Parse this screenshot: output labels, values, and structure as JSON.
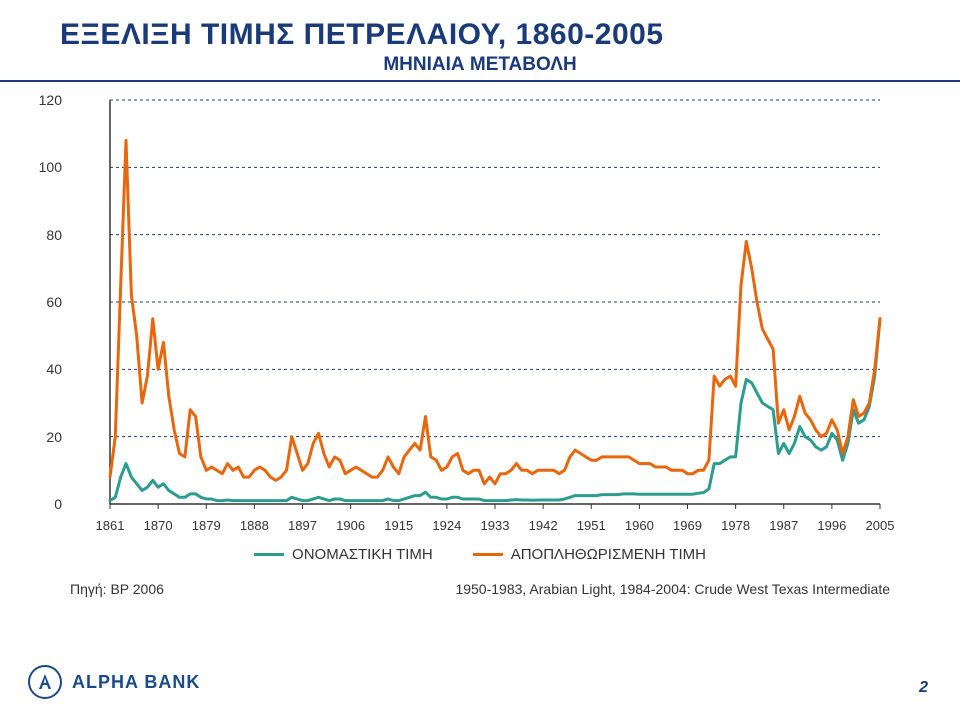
{
  "title": "ΕΞΕΛΙΞΗ ΤΙΜΗΣ ΠΕΤΡΕΛΑΙΟΥ, 1860-2005",
  "subtitle": "ΜΗΝΙΑΙΑ ΜΕΤΑΒΟΛΗ",
  "chart": {
    "type": "line",
    "ylim": [
      0,
      120
    ],
    "ytick_step": 20,
    "yticks": [
      0,
      20,
      40,
      60,
      80,
      100,
      120
    ],
    "xlim": [
      1861,
      2005
    ],
    "xticks": [
      1861,
      1870,
      1879,
      1888,
      1897,
      1906,
      1915,
      1924,
      1933,
      1942,
      1951,
      1960,
      1969,
      1978,
      1987,
      1996,
      2005
    ],
    "grid_color": "#1a3a7a",
    "grid_dash": "3,3",
    "axis_color": "#333333",
    "background_color": "#ffffff",
    "line_width": 3,
    "tick_fontsize": 14,
    "series": [
      {
        "name": "ΟΝΟΜΑΣΤΙΚΗ ΤΙΜΗ",
        "color": "#2a9d8f",
        "data": [
          [
            1861,
            1
          ],
          [
            1862,
            2
          ],
          [
            1863,
            8
          ],
          [
            1864,
            12
          ],
          [
            1865,
            8
          ],
          [
            1866,
            6
          ],
          [
            1867,
            4
          ],
          [
            1868,
            5
          ],
          [
            1869,
            7
          ],
          [
            1870,
            5
          ],
          [
            1871,
            6
          ],
          [
            1872,
            4
          ],
          [
            1873,
            3
          ],
          [
            1874,
            2
          ],
          [
            1875,
            2
          ],
          [
            1876,
            3
          ],
          [
            1877,
            3
          ],
          [
            1878,
            2
          ],
          [
            1879,
            1.5
          ],
          [
            1880,
            1.5
          ],
          [
            1881,
            1
          ],
          [
            1882,
            1
          ],
          [
            1883,
            1.2
          ],
          [
            1884,
            1
          ],
          [
            1885,
            1
          ],
          [
            1886,
            1
          ],
          [
            1887,
            1
          ],
          [
            1888,
            1
          ],
          [
            1889,
            1
          ],
          [
            1890,
            1
          ],
          [
            1891,
            1
          ],
          [
            1892,
            1
          ],
          [
            1893,
            1
          ],
          [
            1894,
            1
          ],
          [
            1895,
            2
          ],
          [
            1896,
            1.5
          ],
          [
            1897,
            1
          ],
          [
            1898,
            1
          ],
          [
            1899,
            1.5
          ],
          [
            1900,
            2
          ],
          [
            1901,
            1.5
          ],
          [
            1902,
            1
          ],
          [
            1903,
            1.5
          ],
          [
            1904,
            1.5
          ],
          [
            1905,
            1
          ],
          [
            1906,
            1
          ],
          [
            1907,
            1
          ],
          [
            1908,
            1
          ],
          [
            1909,
            1
          ],
          [
            1910,
            1
          ],
          [
            1911,
            1
          ],
          [
            1912,
            1
          ],
          [
            1913,
            1.5
          ],
          [
            1914,
            1
          ],
          [
            1915,
            1
          ],
          [
            1916,
            1.5
          ],
          [
            1917,
            2
          ],
          [
            1918,
            2.5
          ],
          [
            1919,
            2.5
          ],
          [
            1920,
            3.5
          ],
          [
            1921,
            2
          ],
          [
            1922,
            2
          ],
          [
            1923,
            1.5
          ],
          [
            1924,
            1.5
          ],
          [
            1925,
            2
          ],
          [
            1926,
            2
          ],
          [
            1927,
            1.5
          ],
          [
            1928,
            1.5
          ],
          [
            1929,
            1.5
          ],
          [
            1930,
            1.5
          ],
          [
            1931,
            1
          ],
          [
            1932,
            1
          ],
          [
            1933,
            1
          ],
          [
            1934,
            1
          ],
          [
            1935,
            1
          ],
          [
            1936,
            1.2
          ],
          [
            1937,
            1.3
          ],
          [
            1938,
            1.2
          ],
          [
            1939,
            1.2
          ],
          [
            1940,
            1.1
          ],
          [
            1941,
            1.2
          ],
          [
            1942,
            1.2
          ],
          [
            1943,
            1.2
          ],
          [
            1944,
            1.2
          ],
          [
            1945,
            1.2
          ],
          [
            1946,
            1.5
          ],
          [
            1947,
            2
          ],
          [
            1948,
            2.5
          ],
          [
            1949,
            2.5
          ],
          [
            1950,
            2.5
          ],
          [
            1951,
            2.5
          ],
          [
            1952,
            2.5
          ],
          [
            1953,
            2.8
          ],
          [
            1954,
            2.8
          ],
          [
            1955,
            2.8
          ],
          [
            1956,
            2.8
          ],
          [
            1957,
            3
          ],
          [
            1958,
            3
          ],
          [
            1959,
            3
          ],
          [
            1960,
            2.9
          ],
          [
            1961,
            2.9
          ],
          [
            1962,
            2.9
          ],
          [
            1963,
            2.9
          ],
          [
            1964,
            2.9
          ],
          [
            1965,
            2.9
          ],
          [
            1966,
            2.9
          ],
          [
            1967,
            2.9
          ],
          [
            1968,
            2.9
          ],
          [
            1969,
            2.9
          ],
          [
            1970,
            2.9
          ],
          [
            1971,
            3.2
          ],
          [
            1972,
            3.4
          ],
          [
            1973,
            4.5
          ],
          [
            1974,
            12
          ],
          [
            1975,
            12
          ],
          [
            1976,
            13
          ],
          [
            1977,
            14
          ],
          [
            1978,
            14
          ],
          [
            1979,
            30
          ],
          [
            1980,
            37
          ],
          [
            1981,
            36
          ],
          [
            1982,
            33
          ],
          [
            1983,
            30
          ],
          [
            1984,
            29
          ],
          [
            1985,
            28
          ],
          [
            1986,
            15
          ],
          [
            1987,
            18
          ],
          [
            1988,
            15
          ],
          [
            1989,
            18
          ],
          [
            1990,
            23
          ],
          [
            1991,
            20
          ],
          [
            1992,
            19
          ],
          [
            1993,
            17
          ],
          [
            1994,
            16
          ],
          [
            1995,
            17
          ],
          [
            1996,
            21
          ],
          [
            1997,
            19
          ],
          [
            1998,
            13
          ],
          [
            1999,
            18
          ],
          [
            2000,
            28
          ],
          [
            2001,
            24
          ],
          [
            2002,
            25
          ],
          [
            2003,
            29
          ],
          [
            2004,
            38
          ],
          [
            2005,
            55
          ]
        ]
      },
      {
        "name": "ΑΠΟΠΛΗΘΩΡΙΣΜΕΝΗ ΤΙΜΗ",
        "color": "#e8660c",
        "data": [
          [
            1861,
            8
          ],
          [
            1862,
            20
          ],
          [
            1863,
            65
          ],
          [
            1864,
            108
          ],
          [
            1865,
            62
          ],
          [
            1866,
            50
          ],
          [
            1867,
            30
          ],
          [
            1868,
            38
          ],
          [
            1869,
            55
          ],
          [
            1870,
            40
          ],
          [
            1871,
            48
          ],
          [
            1872,
            32
          ],
          [
            1873,
            22
          ],
          [
            1874,
            15
          ],
          [
            1875,
            14
          ],
          [
            1876,
            28
          ],
          [
            1877,
            26
          ],
          [
            1878,
            14
          ],
          [
            1879,
            10
          ],
          [
            1880,
            11
          ],
          [
            1881,
            10
          ],
          [
            1882,
            9
          ],
          [
            1883,
            12
          ],
          [
            1884,
            10
          ],
          [
            1885,
            11
          ],
          [
            1886,
            8
          ],
          [
            1887,
            8
          ],
          [
            1888,
            10
          ],
          [
            1889,
            11
          ],
          [
            1890,
            10
          ],
          [
            1891,
            8
          ],
          [
            1892,
            7
          ],
          [
            1893,
            8
          ],
          [
            1894,
            10
          ],
          [
            1895,
            20
          ],
          [
            1896,
            15
          ],
          [
            1897,
            10
          ],
          [
            1898,
            12
          ],
          [
            1899,
            18
          ],
          [
            1900,
            21
          ],
          [
            1901,
            15
          ],
          [
            1902,
            11
          ],
          [
            1903,
            14
          ],
          [
            1904,
            13
          ],
          [
            1905,
            9
          ],
          [
            1906,
            10
          ],
          [
            1907,
            11
          ],
          [
            1908,
            10
          ],
          [
            1909,
            9
          ],
          [
            1910,
            8
          ],
          [
            1911,
            8
          ],
          [
            1912,
            10
          ],
          [
            1913,
            14
          ],
          [
            1914,
            11
          ],
          [
            1915,
            9
          ],
          [
            1916,
            14
          ],
          [
            1917,
            16
          ],
          [
            1918,
            18
          ],
          [
            1919,
            16
          ],
          [
            1920,
            26
          ],
          [
            1921,
            14
          ],
          [
            1922,
            13
          ],
          [
            1923,
            10
          ],
          [
            1924,
            11
          ],
          [
            1925,
            14
          ],
          [
            1926,
            15
          ],
          [
            1927,
            10
          ],
          [
            1928,
            9
          ],
          [
            1929,
            10
          ],
          [
            1930,
            10
          ],
          [
            1931,
            6
          ],
          [
            1932,
            8
          ],
          [
            1933,
            6
          ],
          [
            1934,
            9
          ],
          [
            1935,
            9
          ],
          [
            1936,
            10
          ],
          [
            1937,
            12
          ],
          [
            1938,
            10
          ],
          [
            1939,
            10
          ],
          [
            1940,
            9
          ],
          [
            1941,
            10
          ],
          [
            1942,
            10
          ],
          [
            1943,
            10
          ],
          [
            1944,
            10
          ],
          [
            1945,
            9
          ],
          [
            1946,
            10
          ],
          [
            1947,
            14
          ],
          [
            1948,
            16
          ],
          [
            1949,
            15
          ],
          [
            1950,
            14
          ],
          [
            1951,
            13
          ],
          [
            1952,
            13
          ],
          [
            1953,
            14
          ],
          [
            1954,
            14
          ],
          [
            1955,
            14
          ],
          [
            1956,
            14
          ],
          [
            1957,
            14
          ],
          [
            1958,
            14
          ],
          [
            1959,
            13
          ],
          [
            1960,
            12
          ],
          [
            1961,
            12
          ],
          [
            1962,
            12
          ],
          [
            1963,
            11
          ],
          [
            1964,
            11
          ],
          [
            1965,
            11
          ],
          [
            1966,
            10
          ],
          [
            1967,
            10
          ],
          [
            1968,
            10
          ],
          [
            1969,
            9
          ],
          [
            1970,
            9
          ],
          [
            1971,
            10
          ],
          [
            1972,
            10
          ],
          [
            1973,
            13
          ],
          [
            1974,
            38
          ],
          [
            1975,
            35
          ],
          [
            1976,
            37
          ],
          [
            1977,
            38
          ],
          [
            1978,
            35
          ],
          [
            1979,
            65
          ],
          [
            1980,
            78
          ],
          [
            1981,
            70
          ],
          [
            1982,
            60
          ],
          [
            1983,
            52
          ],
          [
            1984,
            49
          ],
          [
            1985,
            46
          ],
          [
            1986,
            24
          ],
          [
            1987,
            28
          ],
          [
            1988,
            22
          ],
          [
            1989,
            26
          ],
          [
            1990,
            32
          ],
          [
            1991,
            27
          ],
          [
            1992,
            25
          ],
          [
            1993,
            22
          ],
          [
            1994,
            20
          ],
          [
            1995,
            21
          ],
          [
            1996,
            25
          ],
          [
            1997,
            22
          ],
          [
            1998,
            15
          ],
          [
            1999,
            20
          ],
          [
            2000,
            31
          ],
          [
            2001,
            26
          ],
          [
            2002,
            27
          ],
          [
            2003,
            30
          ],
          [
            2004,
            40
          ],
          [
            2005,
            55
          ]
        ]
      }
    ]
  },
  "legend": {
    "items": [
      {
        "label": "ΟΝΟΜΑΣΤΙΚΗ ΤΙΜΗ",
        "color": "#2a9d8f"
      },
      {
        "label": "ΑΠΟΠΛΗΘΩΡΙΣΜΕΝΗ ΤΙΜΗ",
        "color": "#e8660c"
      }
    ],
    "fontsize": 15
  },
  "source": {
    "label": "Πηγή: BP 2006",
    "note": "1950-1983, Arabian Light, 1984-2004: Crude West Texas Intermediate"
  },
  "branding": {
    "name": "ALPHA BANK",
    "color": "#1a4a8a"
  },
  "page_number": "2"
}
